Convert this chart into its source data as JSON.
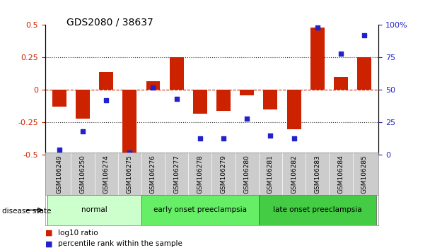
{
  "title": "GDS2080 / 38637",
  "samples": [
    "GSM106249",
    "GSM106250",
    "GSM106274",
    "GSM106275",
    "GSM106276",
    "GSM106277",
    "GSM106278",
    "GSM106279",
    "GSM106280",
    "GSM106281",
    "GSM106282",
    "GSM106283",
    "GSM106284",
    "GSM106285"
  ],
  "log10_ratio": [
    -0.13,
    -0.22,
    0.14,
    -0.49,
    0.065,
    0.25,
    -0.18,
    -0.16,
    -0.04,
    -0.15,
    -0.3,
    0.48,
    0.1,
    0.25
  ],
  "percentile_rank": [
    4,
    18,
    42,
    2,
    52,
    43,
    13,
    13,
    28,
    15,
    13,
    98,
    78,
    92
  ],
  "bar_color": "#cc2200",
  "dot_color": "#2222cc",
  "ylim_left": [
    -0.5,
    0.5
  ],
  "ylim_right": [
    0,
    100
  ],
  "yticks_left": [
    -0.5,
    -0.25,
    0,
    0.25,
    0.5
  ],
  "yticks_right": [
    0,
    25,
    50,
    75,
    100
  ],
  "hlines_dotted": [
    -0.25,
    0.25
  ],
  "hline_dashed": 0,
  "groups": [
    {
      "label": "normal",
      "start": 0,
      "end": 3,
      "color": "#ccffcc"
    },
    {
      "label": "early onset preeclampsia",
      "start": 4,
      "end": 8,
      "color": "#66ee66"
    },
    {
      "label": "late onset preeclampsia",
      "start": 9,
      "end": 13,
      "color": "#44cc44"
    }
  ],
  "legend_items": [
    {
      "label": "log10 ratio",
      "color": "#cc2200"
    },
    {
      "label": "percentile rank within the sample",
      "color": "#2222cc"
    }
  ],
  "disease_state_label": "disease state",
  "left_ylabel_color": "#cc2200",
  "right_ylabel_color": "#2222cc",
  "background_color": "#ffffff",
  "tick_area_color": "#cccccc"
}
